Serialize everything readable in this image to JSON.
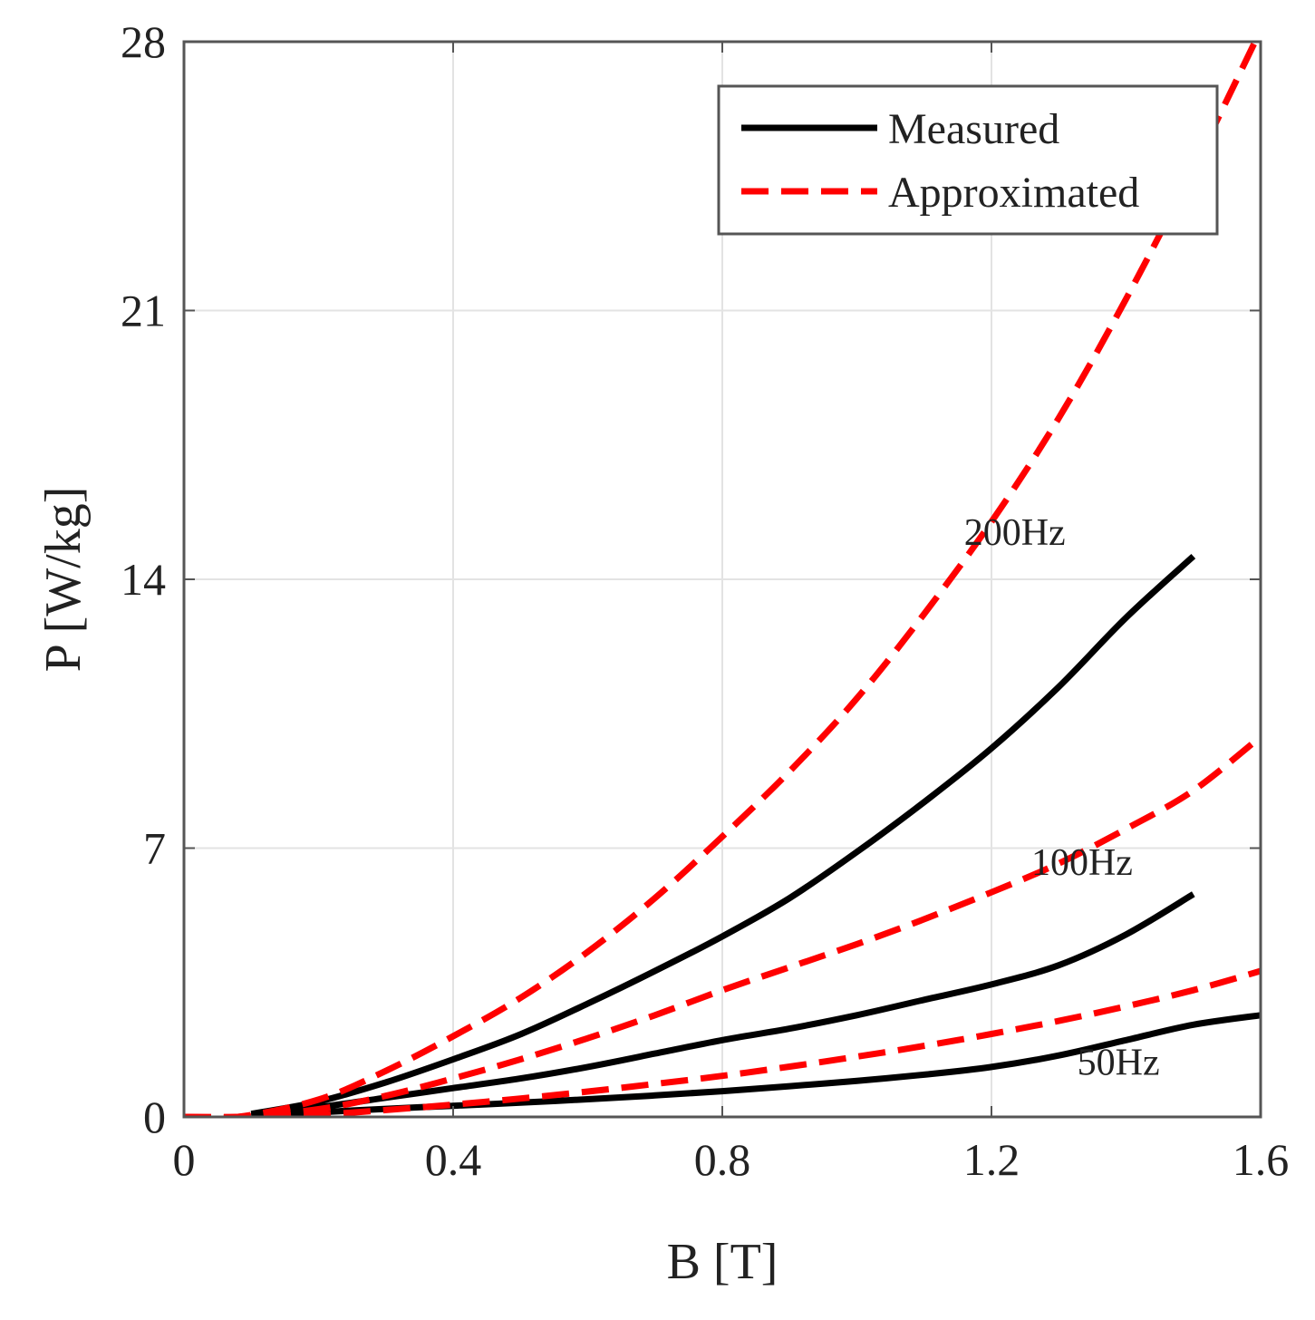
{
  "chart_data": {
    "type": "line",
    "title": "",
    "xlabel": "B [T]",
    "ylabel": "P [W/kg]",
    "xlim": [
      0,
      1.6
    ],
    "ylim": [
      0,
      28
    ],
    "xticks": [
      0,
      0.4,
      0.8,
      1.2,
      1.6
    ],
    "xtick_labels": [
      "0",
      "0.4",
      "0.8",
      "1.2",
      "1.6"
    ],
    "yticks": [
      0,
      7,
      14,
      21,
      28
    ],
    "ytick_labels": [
      "0",
      "7",
      "14",
      "21",
      "28"
    ],
    "grid": true,
    "legend": {
      "position": "top-right",
      "entries": [
        {
          "label": "Measured",
          "color": "#000000",
          "style": "solid"
        },
        {
          "label": "Approximated",
          "color": "#ff0000",
          "style": "dashed"
        }
      ]
    },
    "annotations": [
      {
        "text": "200Hz",
        "x": 1.31,
        "y": 14.9
      },
      {
        "text": "100Hz",
        "x": 1.41,
        "y": 6.3
      },
      {
        "text": "50Hz",
        "x": 1.45,
        "y": 1.1
      }
    ],
    "series": [
      {
        "name": "Measured 50Hz",
        "kind": "measured",
        "color": "#000000",
        "dash": false,
        "x": [
          0.1,
          0.2,
          0.3,
          0.4,
          0.5,
          0.6,
          0.7,
          0.8,
          0.9,
          1.0,
          1.1,
          1.2,
          1.3,
          1.4,
          1.5,
          1.6
        ],
        "y": [
          0.03,
          0.12,
          0.21,
          0.29,
          0.37,
          0.46,
          0.56,
          0.67,
          0.8,
          0.94,
          1.1,
          1.3,
          1.6,
          2.0,
          2.4,
          2.65
        ]
      },
      {
        "name": "Measured 100Hz",
        "kind": "measured",
        "color": "#000000",
        "dash": false,
        "x": [
          0.1,
          0.2,
          0.3,
          0.4,
          0.5,
          0.6,
          0.7,
          0.8,
          0.9,
          1.0,
          1.1,
          1.2,
          1.3,
          1.4,
          1.5
        ],
        "y": [
          0.05,
          0.25,
          0.5,
          0.75,
          1.0,
          1.3,
          1.65,
          2.0,
          2.3,
          2.65,
          3.05,
          3.45,
          3.95,
          4.75,
          5.8
        ]
      },
      {
        "name": "Measured 200Hz",
        "kind": "measured",
        "color": "#000000",
        "dash": false,
        "x": [
          0.1,
          0.2,
          0.3,
          0.4,
          0.5,
          0.6,
          0.7,
          0.8,
          0.9,
          1.0,
          1.1,
          1.2,
          1.3,
          1.4,
          1.5
        ],
        "y": [
          0.08,
          0.4,
          0.9,
          1.5,
          2.15,
          2.95,
          3.8,
          4.7,
          5.7,
          6.9,
          8.2,
          9.6,
          11.2,
          13.0,
          14.6
        ]
      },
      {
        "name": "Approximated 50Hz",
        "kind": "approximated",
        "color": "#ff0000",
        "dash": true,
        "x": [
          0,
          0.08,
          0.2,
          0.3,
          0.4,
          0.5,
          0.6,
          0.7,
          0.8,
          0.9,
          1.0,
          1.1,
          1.2,
          1.3,
          1.4,
          1.5,
          1.6
        ],
        "y": [
          0,
          0,
          0.06,
          0.18,
          0.32,
          0.48,
          0.66,
          0.86,
          1.07,
          1.31,
          1.57,
          1.85,
          2.16,
          2.5,
          2.88,
          3.3,
          3.8
        ]
      },
      {
        "name": "Approximated 100Hz",
        "kind": "approximated",
        "color": "#ff0000",
        "dash": true,
        "x": [
          0,
          0.08,
          0.2,
          0.3,
          0.4,
          0.5,
          0.6,
          0.7,
          0.8,
          0.9,
          1.0,
          1.1,
          1.2,
          1.3,
          1.4,
          1.5,
          1.6
        ],
        "y": [
          0,
          0,
          0.2,
          0.55,
          1.0,
          1.5,
          2.05,
          2.65,
          3.3,
          3.9,
          4.5,
          5.15,
          5.85,
          6.6,
          7.5,
          8.5,
          9.9
        ]
      },
      {
        "name": "Approximated 200Hz",
        "kind": "approximated",
        "color": "#ff0000",
        "dash": true,
        "x": [
          0,
          0.08,
          0.2,
          0.3,
          0.4,
          0.5,
          0.6,
          0.7,
          0.8,
          0.9,
          1.0,
          1.1,
          1.2,
          1.3,
          1.4,
          1.5,
          1.6
        ],
        "y": [
          0,
          0,
          0.45,
          1.2,
          2.1,
          3.1,
          4.3,
          5.7,
          7.3,
          9.0,
          10.9,
          13.1,
          15.5,
          18.2,
          21.3,
          24.7,
          28.3
        ]
      }
    ]
  }
}
